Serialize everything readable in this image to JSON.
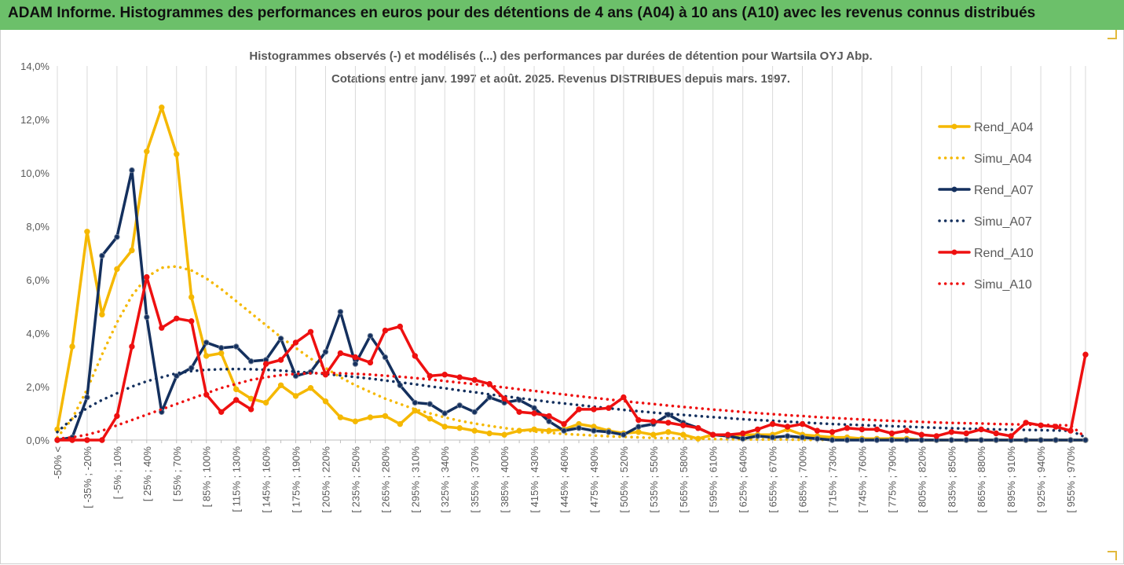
{
  "banner": {
    "title": "ADAM Informe. Histogrammes des performances en euros pour des détentions de 4 ans (A04) à 10 ans (A10) avec les revenus connus distribués"
  },
  "chart_data": {
    "type": "line",
    "title": "Histogrammes observés (-) et modélisés (...) des performances par durées de détention pour Wartsila OYJ Abp.",
    "subtitle": "Cotations entre janv. 1997 et août. 2025. Revenus DISTRIBUES depuis mars. 1997.",
    "xlabel": "",
    "ylabel": "",
    "ylim": [
      0,
      14
    ],
    "yticks": [
      "0,0%",
      "2,0%",
      "4,0%",
      "6,0%",
      "8,0%",
      "10,0%",
      "12,0%",
      "14,0%"
    ],
    "grid": "vertical",
    "legend_position": "right",
    "x_tick_labels": [
      "-50% <",
      "[ -35% ; -20%",
      "[ -5% ; 10%",
      "[ 25% ; 40%",
      "[ 55% ; 70%",
      "[ 85% ; 100%",
      "[ 115% ; 130%",
      "[ 145% ; 160%",
      "[ 175% ; 190%",
      "[ 205% ; 220%",
      "[ 235% ; 250%",
      "[ 265% ; 280%",
      "[ 295% ; 310%",
      "[ 325% ; 340%",
      "[ 355% ; 370%",
      "[ 385% ; 400%",
      "[ 415% ; 430%",
      "[ 445% ; 460%",
      "[ 475% ; 490%",
      "[ 505% ; 520%",
      "[ 535% ; 550%",
      "[ 565% ; 580%",
      "[ 595% ; 610%",
      "[ 625% ; 640%",
      "[ 655% ; 670%",
      "[ 685% ; 700%",
      "[ 715% ; 730%",
      "[ 745% ; 760%",
      "[ 775% ; 790%",
      "[ 805% ; 820%",
      "[ 835% ; 850%",
      "[ 865% ; 880%",
      "[ 895% ; 910%",
      "[ 925% ; 940%",
      "[ 955% ; 970%"
    ],
    "series": [
      {
        "name": "Rend_A04",
        "style": "solid",
        "color": "#f5b800",
        "values": [
          0.4,
          3.5,
          7.8,
          4.7,
          6.4,
          7.1,
          10.8,
          12.45,
          10.7,
          5.35,
          3.15,
          3.25,
          1.9,
          1.55,
          1.4,
          2.05,
          1.65,
          1.95,
          1.45,
          0.85,
          0.7,
          0.85,
          0.9,
          0.6,
          1.1,
          0.8,
          0.5,
          0.45,
          0.35,
          0.25,
          0.2,
          0.35,
          0.4,
          0.35,
          0.4,
          0.6,
          0.5,
          0.35,
          0.25,
          0.3,
          0.2,
          0.3,
          0.2,
          0.05,
          0.2,
          0.15,
          0.2,
          0.2,
          0.2,
          0.4,
          0.2,
          0.15,
          0.1,
          0.1,
          0.05,
          0.05,
          0.05,
          0.05,
          0,
          0,
          0,
          0,
          0,
          0,
          0,
          0,
          0,
          0,
          0,
          0
        ]
      },
      {
        "name": "Simu_A04",
        "style": "dotted",
        "color": "#f5b800",
        "values": [
          0.1,
          0.8,
          1.9,
          3.2,
          4.4,
          5.4,
          6.1,
          6.45,
          6.5,
          6.35,
          6.05,
          5.65,
          5.2,
          4.75,
          4.3,
          3.85,
          3.45,
          3.05,
          2.7,
          2.35,
          2.05,
          1.8,
          1.55,
          1.35,
          1.15,
          1.0,
          0.85,
          0.72,
          0.62,
          0.53,
          0.45,
          0.38,
          0.32,
          0.27,
          0.23,
          0.2,
          0.17,
          0.14,
          0.12,
          0.1,
          0.08,
          0.07,
          0.06,
          0.05,
          0.04,
          0.03,
          0.03,
          0.02,
          0.02,
          0.02,
          0.01,
          0.01,
          0.01,
          0.01,
          0.01,
          0.01,
          0,
          0,
          0,
          0,
          0,
          0,
          0,
          0,
          0,
          0,
          0,
          0,
          0,
          0
        ]
      },
      {
        "name": "Rend_A07",
        "style": "solid",
        "color": "#14305e",
        "values": [
          0,
          0.1,
          1.6,
          6.9,
          7.6,
          10.1,
          4.6,
          1.05,
          2.4,
          2.7,
          3.65,
          3.45,
          3.5,
          2.95,
          3.0,
          3.8,
          2.4,
          2.55,
          3.3,
          4.8,
          2.85,
          3.9,
          3.1,
          2.05,
          1.4,
          1.35,
          1.0,
          1.3,
          1.05,
          1.6,
          1.4,
          1.5,
          1.2,
          0.7,
          0.35,
          0.45,
          0.35,
          0.3,
          0.2,
          0.5,
          0.6,
          0.95,
          0.65,
          0.45,
          0.2,
          0.15,
          0.05,
          0.15,
          0.1,
          0.15,
          0.1,
          0.05,
          0,
          0,
          0,
          0,
          0,
          0,
          0,
          0,
          0,
          0,
          0,
          0,
          0,
          0,
          0,
          0,
          0,
          0
        ]
      },
      {
        "name": "Simu_A07",
        "style": "dotted",
        "color": "#14305e",
        "values": [
          0.3,
          0.8,
          1.2,
          1.5,
          1.75,
          2.0,
          2.2,
          2.35,
          2.5,
          2.58,
          2.63,
          2.65,
          2.66,
          2.65,
          2.63,
          2.6,
          2.56,
          2.52,
          2.47,
          2.42,
          2.36,
          2.3,
          2.23,
          2.16,
          2.09,
          2.01,
          1.94,
          1.86,
          1.79,
          1.71,
          1.64,
          1.57,
          1.5,
          1.43,
          1.37,
          1.31,
          1.25,
          1.19,
          1.13,
          1.08,
          1.03,
          0.98,
          0.94,
          0.9,
          0.86,
          0.82,
          0.78,
          0.75,
          0.72,
          0.69,
          0.66,
          0.63,
          0.6,
          0.58,
          0.56,
          0.54,
          0.52,
          0.5,
          0.48,
          0.46,
          0.44,
          0.43,
          0.41,
          0.4,
          0.39,
          0.38,
          0.37,
          0.36,
          0.35,
          0.1
        ]
      },
      {
        "name": "Rend_A10",
        "style": "solid",
        "color": "#ee1010",
        "values": [
          0,
          0,
          0,
          0,
          0.9,
          3.5,
          6.1,
          4.2,
          4.55,
          4.45,
          1.7,
          1.05,
          1.5,
          1.15,
          2.85,
          3.0,
          3.65,
          4.05,
          2.45,
          3.25,
          3.1,
          2.9,
          4.1,
          4.25,
          3.15,
          2.4,
          2.45,
          2.35,
          2.25,
          2.1,
          1.55,
          1.05,
          1.0,
          0.9,
          0.6,
          1.15,
          1.15,
          1.2,
          1.6,
          0.75,
          0.7,
          0.65,
          0.55,
          0.45,
          0.2,
          0.2,
          0.25,
          0.4,
          0.6,
          0.5,
          0.6,
          0.35,
          0.3,
          0.45,
          0.4,
          0.4,
          0.25,
          0.35,
          0.2,
          0.15,
          0.3,
          0.25,
          0.4,
          0.25,
          0.15,
          0.65,
          0.55,
          0.5,
          0.35,
          3.2
        ]
      },
      {
        "name": "Simu_A10",
        "style": "dotted",
        "color": "#ee1010",
        "values": [
          0.05,
          0.1,
          0.2,
          0.35,
          0.55,
          0.75,
          0.95,
          1.15,
          1.35,
          1.55,
          1.75,
          1.95,
          2.1,
          2.25,
          2.35,
          2.43,
          2.48,
          2.5,
          2.51,
          2.5,
          2.48,
          2.45,
          2.41,
          2.37,
          2.32,
          2.27,
          2.21,
          2.15,
          2.09,
          2.03,
          1.97,
          1.9,
          1.84,
          1.77,
          1.71,
          1.64,
          1.58,
          1.52,
          1.46,
          1.4,
          1.35,
          1.29,
          1.24,
          1.19,
          1.14,
          1.1,
          1.05,
          1.01,
          0.97,
          0.93,
          0.9,
          0.86,
          0.83,
          0.8,
          0.77,
          0.74,
          0.72,
          0.7,
          0.68,
          0.66,
          0.64,
          0.63,
          0.62,
          0.6,
          0.59,
          0.58,
          0.57,
          0.56,
          0.55,
          0.1
        ]
      }
    ]
  }
}
